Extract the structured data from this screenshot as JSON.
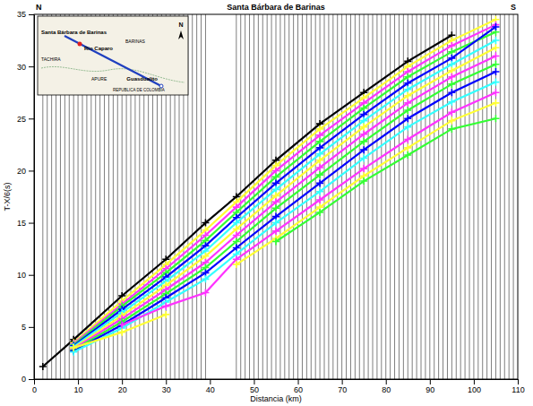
{
  "chart_data": {
    "type": "line",
    "title": "Santa Bárbara de Barinas",
    "xlabel": "Distancia (km)",
    "ylabel": "T-X/6(s)",
    "direction_labels": [
      "N",
      "S"
    ],
    "inset_labels": [
      "Santa Bárbara de Barinas",
      "Río Caparo",
      "Guasdualito",
      "BARINAS",
      "TACHIRA",
      "APURE",
      "REPUBLICA DE COLOMBIA",
      "N"
    ],
    "xlim": [
      0,
      110
    ],
    "xticks": [
      0,
      10,
      20,
      30,
      40,
      50,
      60,
      70,
      80,
      90,
      100,
      110
    ],
    "ylim": [
      0,
      35
    ],
    "yticks": [
      0,
      5,
      10,
      15,
      20,
      25,
      30,
      35
    ],
    "marker": "plus",
    "traces": {
      "color": "#000000",
      "x": [
        2,
        3,
        4,
        5,
        6,
        7,
        8,
        9,
        10,
        11,
        12,
        13,
        14,
        15,
        16,
        17,
        18,
        19,
        20,
        21,
        22,
        23,
        24,
        25,
        26,
        27,
        28,
        29,
        30,
        31,
        32,
        33,
        34,
        35,
        36,
        37,
        38,
        39,
        46,
        47,
        48,
        49,
        50,
        51,
        52,
        53,
        54,
        55,
        56,
        57,
        58,
        59,
        60,
        61,
        62,
        63,
        64,
        65,
        66,
        67,
        68,
        69,
        70,
        71,
        72,
        73,
        74,
        75,
        76,
        77,
        78,
        79,
        80,
        81,
        82,
        83,
        84,
        85,
        86,
        87,
        88,
        89,
        90,
        91,
        92,
        93,
        94,
        95,
        96,
        97,
        98,
        99,
        100,
        101,
        102,
        103,
        104,
        105,
        106,
        107,
        108,
        109
      ]
    },
    "x": [
      2,
      9,
      20,
      30,
      39,
      46,
      55,
      65,
      75,
      85,
      95,
      105
    ],
    "series": [
      {
        "color": "#000000",
        "values": [
          1.2,
          3.8,
          8,
          11.5,
          15,
          17.5,
          21,
          24.5,
          27.5,
          30.5,
          33,
          null
        ]
      },
      {
        "color": "#ffff33",
        "values": [
          null,
          3.5,
          7.5,
          11,
          14.3,
          17,
          20.5,
          24,
          27,
          30,
          32.5,
          34.5
        ]
      },
      {
        "color": "#ff33ff",
        "values": [
          null,
          3.4,
          7.2,
          10.6,
          13.8,
          16.5,
          20,
          23.4,
          26.5,
          29.5,
          32,
          34
        ]
      },
      {
        "color": "#33ff33",
        "values": [
          null,
          3.3,
          7,
          10.2,
          13.3,
          16,
          19.4,
          22.8,
          26,
          29,
          31.4,
          33.3
        ]
      },
      {
        "color": "#0000ff",
        "values": [
          null,
          3.2,
          6.7,
          9.8,
          12.8,
          15.5,
          18.8,
          22.2,
          25.4,
          28.4,
          30.8,
          33.8
        ]
      },
      {
        "color": "#33ffff",
        "values": [
          null,
          3.1,
          6.4,
          9.4,
          12.3,
          15,
          18.2,
          21.6,
          24.8,
          27.8,
          30.2,
          32.5
        ]
      },
      {
        "color": "#ffff33",
        "values": [
          null,
          3.0,
          6.1,
          9,
          11.8,
          14.4,
          17.6,
          21,
          24.2,
          27.2,
          29.6,
          31.8
        ]
      },
      {
        "color": "#ff33ff",
        "values": [
          null,
          2.9,
          5.8,
          8.6,
          11.2,
          13.8,
          17,
          20.3,
          23.5,
          26.5,
          29,
          31
        ]
      },
      {
        "color": "#33ff33",
        "values": [
          null,
          2.8,
          5.5,
          8.2,
          10.7,
          13.2,
          16.4,
          19.6,
          22.8,
          25.8,
          28.3,
          30.2
        ]
      },
      {
        "color": "#0000ff",
        "values": [
          null,
          2.7,
          5.2,
          7.8,
          10.2,
          12.6,
          15.6,
          18.8,
          22,
          25,
          27.5,
          29.5
        ]
      },
      {
        "color": "#33ffff",
        "values": [
          null,
          2.6,
          4.9,
          7.4,
          9.6,
          12,
          15,
          18,
          21.2,
          24.2,
          26.6,
          28.5
        ]
      },
      {
        "color": "#ff33ff",
        "values": [
          null,
          null,
          5.2,
          7,
          8.3,
          11.5,
          14.2,
          17.2,
          20.2,
          23,
          25.6,
          27.5
        ]
      },
      {
        "color": "#ffff33",
        "values": [
          null,
          3.0,
          4.5,
          6.2,
          null,
          11,
          13.5,
          16.5,
          19.5,
          22.2,
          24.8,
          26.5
        ]
      },
      {
        "color": "#33ff33",
        "values": [
          null,
          null,
          null,
          null,
          null,
          null,
          13.2,
          16,
          19,
          21.5,
          24,
          25
        ]
      }
    ]
  }
}
